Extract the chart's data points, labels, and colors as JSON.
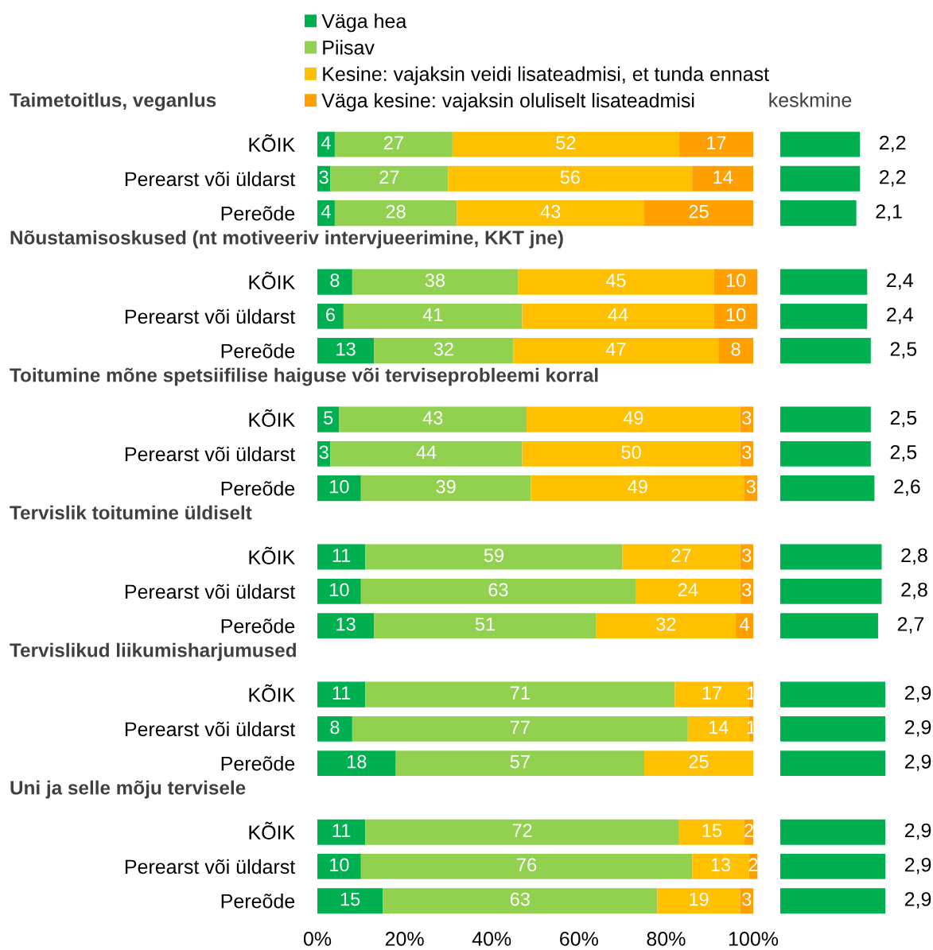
{
  "chart_data": [
    {
      "type": "bar",
      "orientation": "horizontal",
      "stacked": true,
      "title": "Taimetoitlus, veganlus",
      "categories": [
        "KÕIK",
        "Perearst või üldarst",
        "Pereõde"
      ],
      "legend": "top",
      "xlim": [
        0,
        101
      ],
      "tick_labels": "y",
      "data_labels": true,
      "series": [
        {
          "name": "Väga hea",
          "color": "#00b050",
          "values": [
            4,
            3,
            4
          ]
        },
        {
          "name": "Piisav",
          "color": "#92d050",
          "values": [
            27,
            27,
            28
          ]
        },
        {
          "name": "Kesine: vajaksin veidi lisateadmisi, et tunda ennast",
          "color": "#ffc000",
          "values": [
            52,
            56,
            43
          ]
        },
        {
          "name": "Väga kesine: vajaksin oluliselt lisateadmisi",
          "color": "#ffa000",
          "values": [
            17,
            14,
            25
          ]
        }
      ]
    },
    {
      "type": "bar",
      "orientation": "horizontal",
      "stacked": true,
      "title": "Nõustamisoskused (nt motiveeriv intervjueerimine, KKT jne)",
      "categories": [
        "KÕIK",
        "Perearst või üldarst",
        "Pereõde"
      ],
      "xlim": [
        0,
        101
      ],
      "tick_labels": "y",
      "data_labels": true,
      "series": [
        {
          "color": "#00b050",
          "values": [
            8,
            6,
            13
          ]
        },
        {
          "color": "#92d050",
          "values": [
            38,
            41,
            32
          ]
        },
        {
          "color": "#ffc000",
          "values": [
            45,
            44,
            47
          ]
        },
        {
          "color": "#ffa000",
          "values": [
            10,
            10,
            8
          ]
        }
      ]
    },
    {
      "type": "bar",
      "orientation": "horizontal",
      "stacked": true,
      "title": "Toitumine mõne spetsiifilise haiguse või terviseprobleemi korral",
      "categories": [
        "KÕIK",
        "Perearst või üldarst",
        "Pereõde"
      ],
      "xlim": [
        0,
        101
      ],
      "tick_labels": "y",
      "data_labels": true,
      "series": [
        {
          "color": "#00b050",
          "values": [
            5,
            3,
            10
          ]
        },
        {
          "color": "#92d050",
          "values": [
            43,
            44,
            39
          ]
        },
        {
          "color": "#ffc000",
          "values": [
            49,
            50,
            49
          ]
        },
        {
          "color": "#ffa000",
          "values": [
            3,
            3,
            3
          ]
        }
      ]
    },
    {
      "type": "bar",
      "orientation": "horizontal",
      "stacked": true,
      "title": "Tervislik toitumine üldiselt",
      "categories": [
        "KÕIK",
        "Perearst või üldarst",
        "Pereõde"
      ],
      "xlim": [
        0,
        101
      ],
      "tick_labels": "y",
      "data_labels": true,
      "series": [
        {
          "color": "#00b050",
          "values": [
            11,
            10,
            13
          ]
        },
        {
          "color": "#92d050",
          "values": [
            59,
            63,
            51
          ]
        },
        {
          "color": "#ffc000",
          "values": [
            27,
            24,
            32
          ]
        },
        {
          "color": "#ffa000",
          "values": [
            3,
            3,
            4
          ]
        }
      ]
    },
    {
      "type": "bar",
      "orientation": "horizontal",
      "stacked": true,
      "title": "Tervislikud liikumisharjumused",
      "categories": [
        "KÕIK",
        "Perearst või üldarst",
        "Pereõde"
      ],
      "xlim": [
        0,
        101
      ],
      "tick_labels": "y",
      "data_labels": true,
      "series": [
        {
          "color": "#00b050",
          "values": [
            11,
            8,
            18
          ]
        },
        {
          "color": "#92d050",
          "values": [
            71,
            77,
            57
          ]
        },
        {
          "color": "#ffc000",
          "values": [
            17,
            14,
            25
          ]
        },
        {
          "color": "#ffa000",
          "values": [
            1,
            1,
            0
          ],
          "value_labels": [
            "1",
            "1",
            null
          ]
        }
      ]
    },
    {
      "type": "bar",
      "orientation": "horizontal",
      "stacked": true,
      "title": "Uni ja selle mõju tervisele",
      "categories": [
        "KÕIK",
        "Perearst või üldarst",
        "Pereõde"
      ],
      "xlim": [
        0,
        101
      ],
      "xticks": [
        {
          "value": 0,
          "label": "0%"
        },
        {
          "value": 20,
          "label": "20%"
        },
        {
          "value": 40,
          "label": "40%"
        },
        {
          "value": 60,
          "label": "60%"
        },
        {
          "value": 80,
          "label": "80%"
        },
        {
          "value": 100,
          "label": "100%"
        }
      ],
      "data_labels": true,
      "series": [
        {
          "color": "#00b050",
          "values": [
            11,
            10,
            15
          ]
        },
        {
          "color": "#92d050",
          "values": [
            72,
            76,
            63
          ]
        },
        {
          "color": "#ffc000",
          "values": [
            15,
            13,
            19
          ]
        },
        {
          "color": "#ffa000",
          "values": [
            2,
            2,
            3
          ]
        }
      ]
    },
    {
      "type": "bar",
      "orientation": "horizontal",
      "title": "keskmine",
      "categories": [
        null,
        null,
        null,
        null,
        null,
        null,
        null,
        null,
        null,
        null,
        null,
        null,
        null,
        null,
        null,
        null,
        null,
        null
      ],
      "color": "#00b050",
      "values": [
        2.2,
        2.2,
        2.1,
        2.4,
        2.4,
        2.5,
        2.5,
        2.5,
        2.6,
        2.8,
        2.8,
        2.7,
        2.9,
        2.9,
        2.9,
        2.9,
        2.9,
        2.9
      ],
      "value_labels": [
        "2,2",
        "2,2",
        "2,1",
        "2,4",
        "2,4",
        "2,5",
        "2,5",
        "2,5",
        "2,6",
        "2,8",
        "2,8",
        "2,7",
        "2,9",
        "2,9",
        "2,9",
        "2,9",
        "2,9",
        "2,9"
      ],
      "tick_labels": false
    }
  ]
}
